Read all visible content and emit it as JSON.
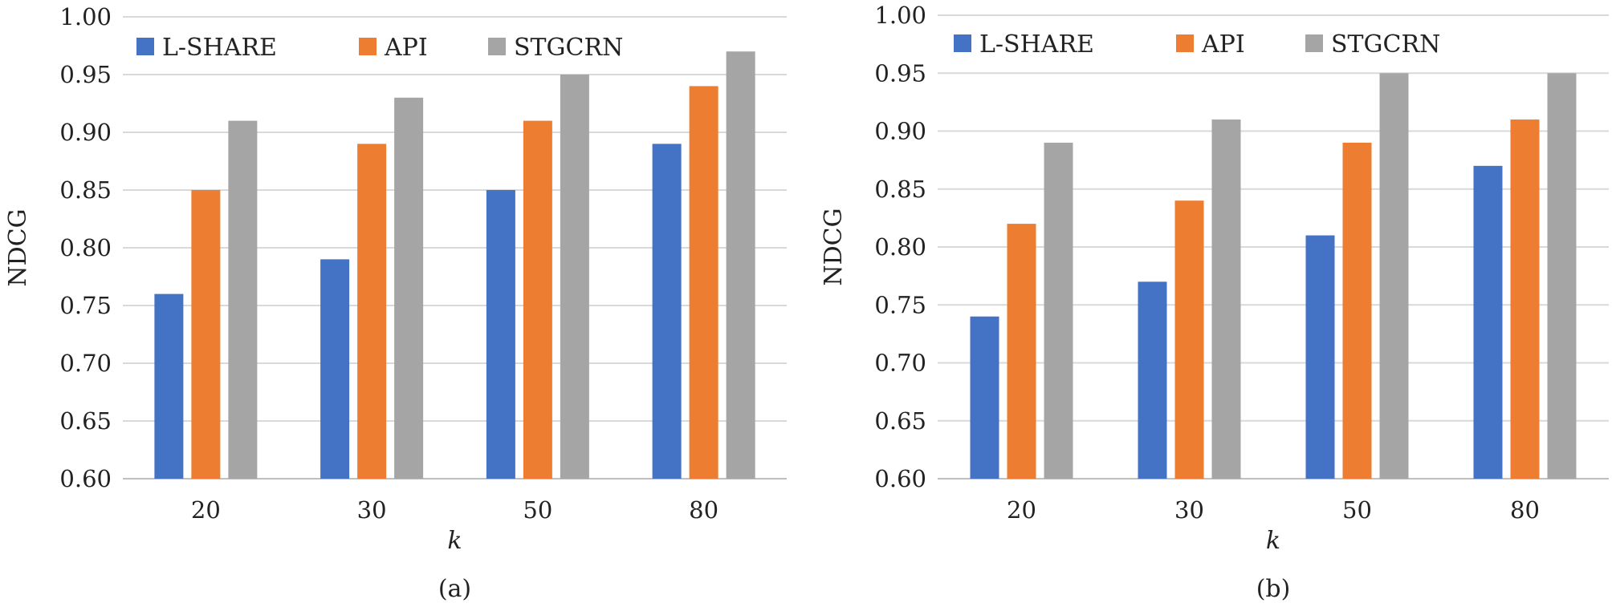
{
  "chart_data": [
    {
      "type": "bar",
      "caption": "(a)",
      "categories": [
        "20",
        "30",
        "50",
        "80"
      ],
      "series": [
        {
          "name": "L-SHARE",
          "color": "#4472c4",
          "values": [
            0.76,
            0.79,
            0.85,
            0.89
          ]
        },
        {
          "name": "API",
          "color": "#ed7d31",
          "values": [
            0.85,
            0.89,
            0.91,
            0.94
          ]
        },
        {
          "name": "STGCRN",
          "color": "#a5a5a5",
          "values": [
            0.91,
            0.93,
            0.95,
            0.97
          ]
        }
      ],
      "xlabel": "k",
      "ylabel": "NDCG",
      "ylim": [
        0.6,
        1.0
      ],
      "yticks": [
        "0.60",
        "0.65",
        "0.70",
        "0.75",
        "0.80",
        "0.85",
        "0.90",
        "0.95",
        "1.00"
      ],
      "grid": true,
      "legend": "top-left"
    },
    {
      "type": "bar",
      "caption": "(b)",
      "categories": [
        "20",
        "30",
        "50",
        "80"
      ],
      "series": [
        {
          "name": "L-SHARE",
          "color": "#4472c4",
          "values": [
            0.74,
            0.77,
            0.81,
            0.87
          ]
        },
        {
          "name": "API",
          "color": "#ed7d31",
          "values": [
            0.82,
            0.84,
            0.89,
            0.91
          ]
        },
        {
          "name": "STGCRN",
          "color": "#a5a5a5",
          "values": [
            0.89,
            0.91,
            0.95,
            0.95
          ]
        }
      ],
      "xlabel": "k",
      "ylabel": "NDCG",
      "ylim": [
        0.6,
        1.0
      ],
      "yticks": [
        "0.60",
        "0.65",
        "0.70",
        "0.75",
        "0.80",
        "0.85",
        "0.90",
        "0.95",
        "1.00"
      ],
      "grid": true,
      "legend": "top-left"
    }
  ]
}
